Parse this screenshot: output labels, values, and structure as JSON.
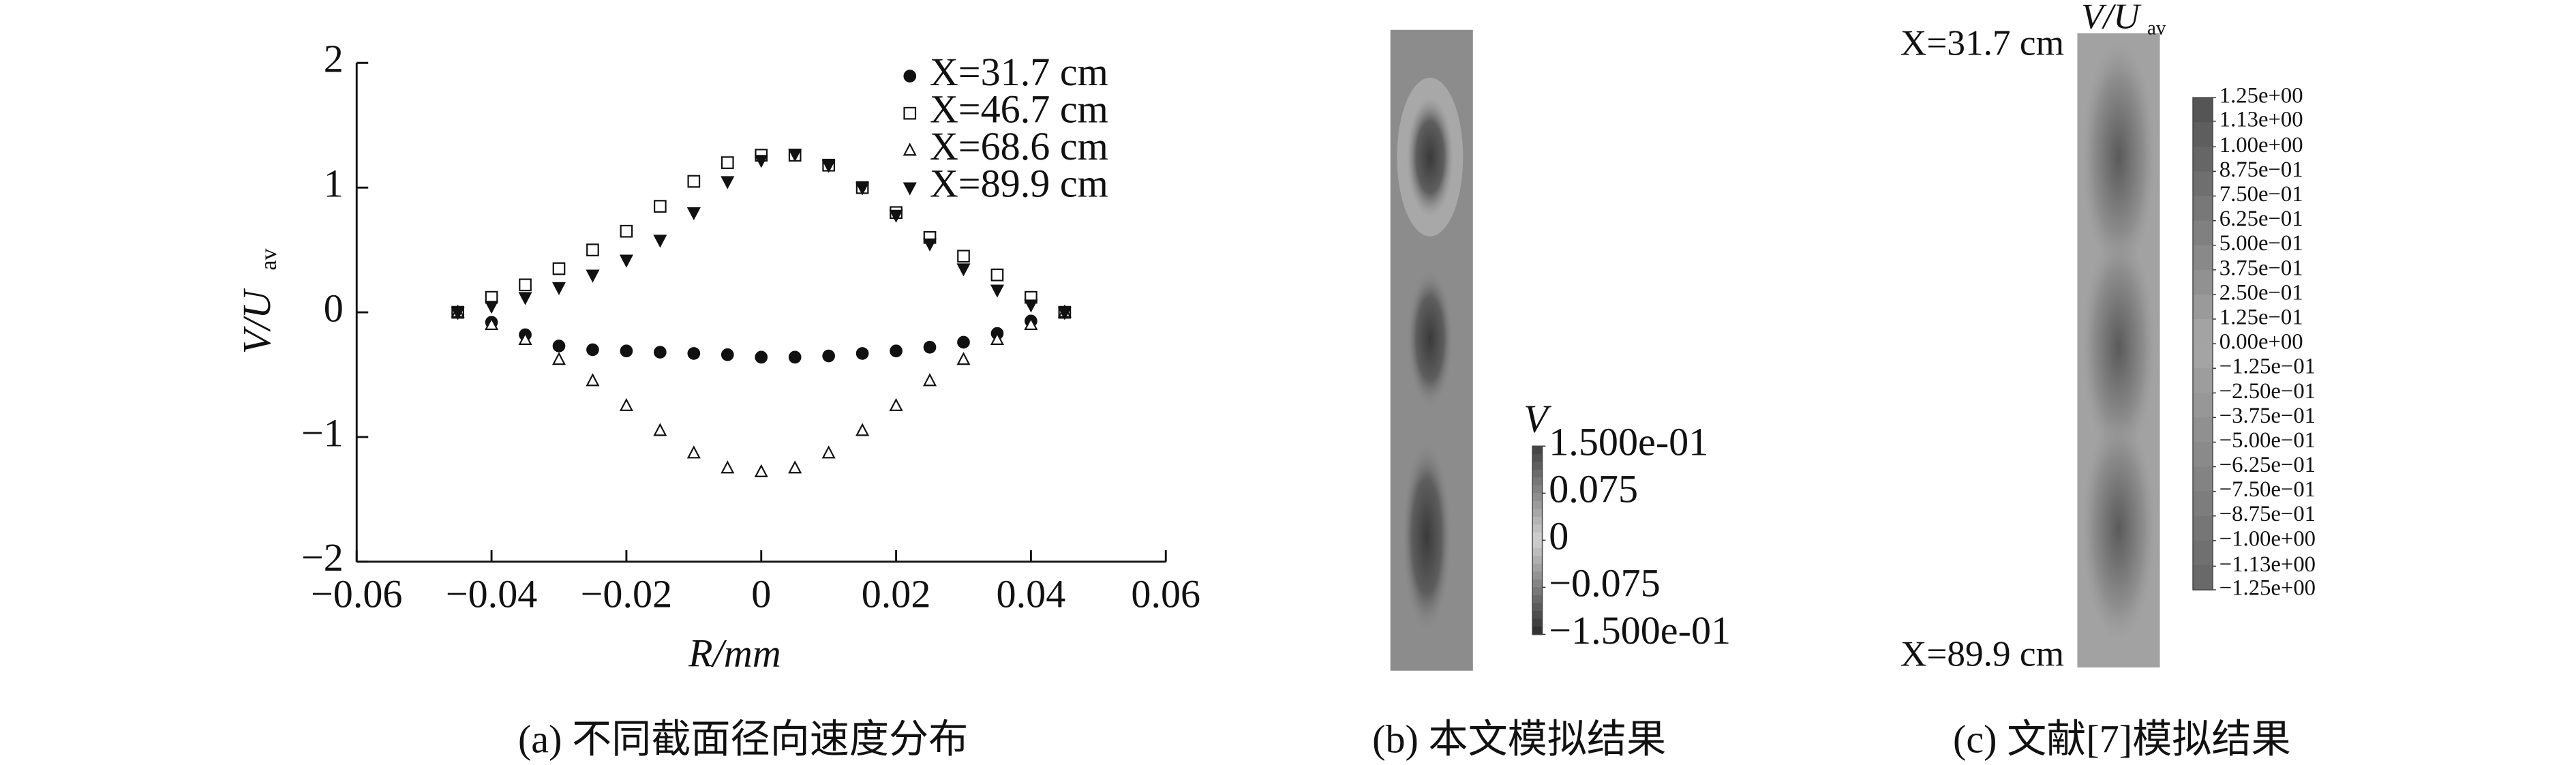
{
  "chart_data": [
    {
      "type": "scatter",
      "caption": "(a) 不同截面径向速度分布",
      "xlabel": "R/mm",
      "ylabel": "V/U",
      "ylabel_sub": "av",
      "xlim": [
        -0.06,
        0.06
      ],
      "ylim": [
        -2,
        2
      ],
      "xticks": [
        {
          "value": -0.06,
          "label": "−0.06"
        },
        {
          "value": -0.04,
          "label": "−0.04"
        },
        {
          "value": -0.02,
          "label": "−0.02"
        },
        0,
        0.02,
        0.04,
        0.06
      ],
      "yticks": [
        {
          "value": -2,
          "label": "−2"
        },
        {
          "value": -1,
          "label": "−1"
        },
        0,
        1,
        2
      ],
      "legend": "upper right",
      "x": [
        -0.045,
        -0.04,
        -0.035,
        -0.03,
        -0.025,
        -0.02,
        -0.015,
        -0.01,
        -0.005,
        0,
        0.005,
        0.01,
        0.015,
        0.02,
        0.025,
        0.03,
        0.035,
        0.04,
        0.045
      ],
      "series": [
        {
          "name": "X=31.7 cm",
          "marker": "circle",
          "color": "#111",
          "values": [
            0,
            -0.08,
            -0.18,
            -0.27,
            -0.3,
            -0.31,
            -0.32,
            -0.33,
            -0.34,
            -0.36,
            -0.36,
            -0.35,
            -0.33,
            -0.31,
            -0.28,
            -0.24,
            -0.17,
            -0.07,
            0
          ]
        },
        {
          "name": "X=46.7 cm",
          "marker": "square",
          "color": "#111",
          "values": [
            0,
            0.12,
            0.22,
            0.35,
            0.5,
            0.65,
            0.85,
            1.05,
            1.2,
            1.26,
            1.26,
            1.18,
            1.0,
            0.8,
            0.6,
            0.45,
            0.3,
            0.12,
            0
          ]
        },
        {
          "name": "X=68.6 cm",
          "marker": "triangle-up",
          "color": "#111",
          "values": [
            0,
            -0.1,
            -0.22,
            -0.38,
            -0.55,
            -0.75,
            -0.95,
            -1.13,
            -1.25,
            -1.28,
            -1.25,
            -1.13,
            -0.95,
            -0.75,
            -0.55,
            -0.38,
            -0.22,
            -0.1,
            0
          ]
        },
        {
          "name": "X=89.9 cm",
          "marker": "triangle-down",
          "color": "#111",
          "values": [
            0,
            0.05,
            0.12,
            0.2,
            0.3,
            0.42,
            0.58,
            0.8,
            1.05,
            1.22,
            1.27,
            1.18,
            1.0,
            0.78,
            0.55,
            0.35,
            0.18,
            0.06,
            0
          ]
        }
      ]
    },
    {
      "type": "heatmap",
      "caption": "(b) 本文模拟结果",
      "colorbar_label": "V",
      "clim": [
        -0.15,
        0.15
      ],
      "cticks": [
        {
          "value": 0.15,
          "label": "1.500e-01"
        },
        0.075,
        0,
        {
          "value": -0.075,
          "label": "−0.075"
        },
        {
          "value": -0.15,
          "label": "−1.500e-01"
        }
      ]
    },
    {
      "type": "heatmap",
      "caption": "(c) 文献[7]模拟结果",
      "colorbar_label": "V/U",
      "colorbar_label_sub": "av",
      "top_label": "X=31.7 cm",
      "bottom_label": "X=89.9 cm",
      "clim": [
        -1.25,
        1.25
      ],
      "cticks": [
        {
          "value": 1.25,
          "label": "1.25e+00"
        },
        {
          "value": 1.13,
          "label": "1.13e+00"
        },
        {
          "value": 1.0,
          "label": "1.00e+00"
        },
        {
          "value": 0.875,
          "label": "8.75e−01"
        },
        {
          "value": 0.75,
          "label": "7.50e−01"
        },
        {
          "value": 0.625,
          "label": "6.25e−01"
        },
        {
          "value": 0.5,
          "label": "5.00e−01"
        },
        {
          "value": 0.375,
          "label": "3.75e−01"
        },
        {
          "value": 0.25,
          "label": "2.50e−01"
        },
        {
          "value": 0.125,
          "label": "1.25e−01"
        },
        {
          "value": 0,
          "label": "0.00e+00"
        },
        {
          "value": -0.125,
          "label": "−1.25e−01"
        },
        {
          "value": -0.25,
          "label": "−2.50e−01"
        },
        {
          "value": -0.375,
          "label": "−3.75e−01"
        },
        {
          "value": -0.5,
          "label": "−5.00e−01"
        },
        {
          "value": -0.625,
          "label": "−6.25e−01"
        },
        {
          "value": -0.75,
          "label": "−7.50e−01"
        },
        {
          "value": -0.875,
          "label": "−8.75e−01"
        },
        {
          "value": -1.0,
          "label": "−1.00e+00"
        },
        {
          "value": -1.13,
          "label": "−1.13e+00"
        },
        {
          "value": -1.25,
          "label": "−1.25e+00"
        }
      ]
    }
  ]
}
